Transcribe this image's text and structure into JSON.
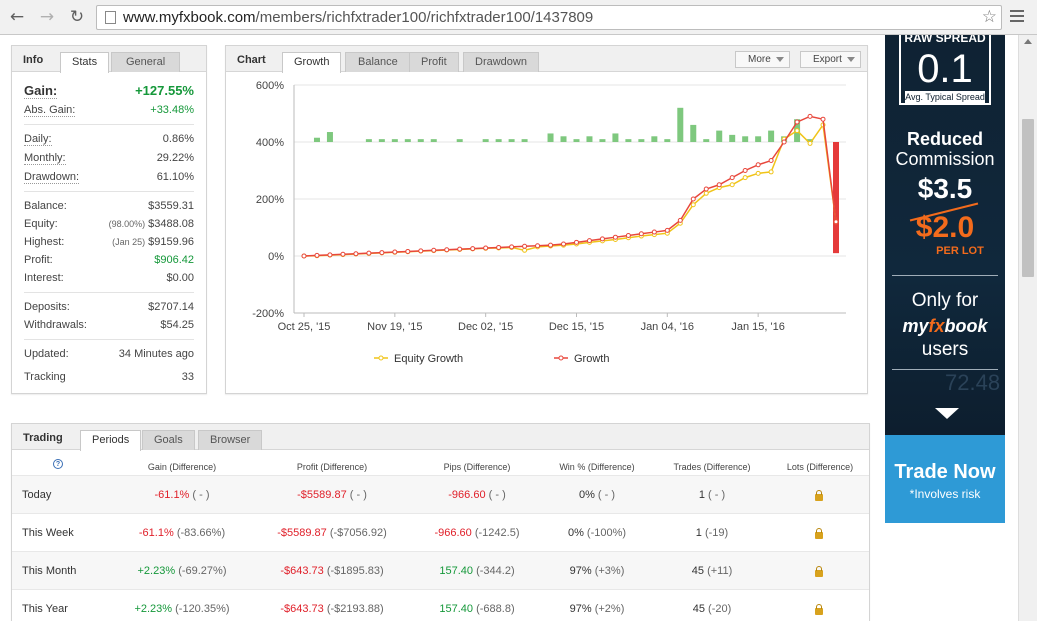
{
  "browser": {
    "back_icon": "back-arrow-icon",
    "forward_icon": "forward-arrow-icon",
    "reload_icon": "reload-icon",
    "url_host": "www.myfxbook.com",
    "url_path": "/members/richfxtrader100/richfxtrader100/1437809",
    "back_glyph": "←",
    "forward_glyph": "→",
    "reload_glyph": "↻",
    "star_glyph": "☆"
  },
  "info": {
    "title": "Info",
    "tabs": [
      "Stats",
      "General"
    ],
    "gain_label": "Gain:",
    "gain_value": "+127.55%",
    "abs_gain_label": "Abs. Gain:",
    "abs_gain_value": "+33.48%",
    "daily_label": "Daily:",
    "daily_value": "0.86%",
    "monthly_label": "Monthly:",
    "monthly_value": "29.22%",
    "drawdown_label": "Drawdown:",
    "drawdown_value": "61.10%",
    "balance_label": "Balance:",
    "balance_value": "$3559.31",
    "equity_label": "Equity:",
    "equity_sub": "(98.00%)",
    "equity_value": "$3488.08",
    "highest_label": "Highest:",
    "highest_sub": "(Jan 25)",
    "highest_value": "$9159.96",
    "profit_label": "Profit:",
    "profit_value": "$906.42",
    "interest_label": "Interest:",
    "interest_value": "$0.00",
    "deposits_label": "Deposits:",
    "deposits_value": "$2707.14",
    "withdrawals_label": "Withdrawals:",
    "withdrawals_value": "$54.25",
    "updated_label": "Updated:",
    "updated_value": "34 Minutes ago",
    "tracking_label": "Tracking",
    "tracking_value": "33"
  },
  "chart_panel": {
    "title": "Chart",
    "tabs": [
      "Growth",
      "Balance",
      "Profit",
      "Drawdown"
    ],
    "more_label": "More",
    "export_label": "Export"
  },
  "chart_data": {
    "type": "line",
    "xlabel": "",
    "ylabel": "",
    "ylim": [
      -200,
      600
    ],
    "y_ticks": [
      "600%",
      "400%",
      "200%",
      "0%",
      "-200%"
    ],
    "y_tick_values": [
      600,
      400,
      200,
      0,
      -200
    ],
    "x_ticks": [
      "Oct 25, '15",
      "Nov 19, '15",
      "Dec 02, '15",
      "Dec 15, '15",
      "Jan 04, '16",
      "Jan 15, '16"
    ],
    "x_tick_index": [
      0,
      7,
      14,
      21,
      28,
      35
    ],
    "grid": true,
    "legend_position": "bottom",
    "series": [
      {
        "name": "Equity Growth",
        "color": "#f0c419",
        "values": [
          0,
          1,
          3,
          5,
          7,
          9,
          11,
          13,
          15,
          17,
          19,
          21,
          23,
          25,
          27,
          28,
          30,
          20,
          32,
          35,
          38,
          42,
          48,
          53,
          58,
          64,
          70,
          75,
          80,
          115,
          180,
          220,
          240,
          250,
          275,
          290,
          295,
          410,
          440,
          395,
          460,
          120
        ]
      },
      {
        "name": "Growth",
        "color": "#e8473c",
        "values": [
          0,
          2,
          4,
          6,
          8,
          10,
          12,
          14,
          16,
          18,
          20,
          22,
          24,
          26,
          28,
          30,
          32,
          34,
          36,
          38,
          42,
          48,
          54,
          60,
          66,
          72,
          78,
          84,
          90,
          125,
          200,
          235,
          250,
          275,
          300,
          320,
          335,
          400,
          470,
          490,
          480,
          120
        ]
      }
    ],
    "bars": {
      "name": "Daily gain",
      "positive_color": "#7ec87e",
      "negative_color": "#e53a3a",
      "values": [
        0,
        15,
        35,
        0,
        0,
        10,
        10,
        10,
        10,
        10,
        10,
        0,
        10,
        0,
        10,
        10,
        10,
        10,
        0,
        30,
        20,
        10,
        20,
        10,
        30,
        10,
        10,
        20,
        10,
        120,
        60,
        10,
        40,
        25,
        20,
        20,
        40,
        20,
        80,
        10,
        0,
        -390
      ]
    }
  },
  "ad": {
    "raw_spread": "RAW SPREAD",
    "spread_value": "0.1",
    "spread_caption": "Avg. Typical Spread",
    "reduced": "Reduced",
    "commission": "Commission",
    "old_price": "$3.5",
    "new_price": "$2.0",
    "per_lot": "PER LOT",
    "only_for": "Only for",
    "brand_a": "my",
    "brand_b": "fx",
    "brand_c": "book",
    "users": "users",
    "trade_now": "Trade Now",
    "risk": "*Involves risk",
    "bg_number": "72.48"
  },
  "trading": {
    "title": "Trading",
    "tabs": [
      "Periods",
      "Goals",
      "Browser"
    ],
    "help_glyph": "?",
    "columns": [
      "Gain (Difference)",
      "Profit (Difference)",
      "Pips (Difference)",
      "Win % (Difference)",
      "Trades (Difference)",
      "Lots (Difference)"
    ],
    "rows": [
      {
        "period": "Today",
        "gain": "-61.1%",
        "gain_diff": "( - )",
        "profit": "-$5589.87",
        "profit_diff": "( - )",
        "pips": "-966.60",
        "pips_diff": "( - )",
        "win": "0%",
        "win_diff": "( - )",
        "trades": "1",
        "trades_diff": "( - )"
      },
      {
        "period": "This Week",
        "gain": "-61.1%",
        "gain_diff": "(-83.66%)",
        "profit": "-$5589.87",
        "profit_diff": "(-$7056.92)",
        "pips": "-966.60",
        "pips_diff": "(-1242.5)",
        "win": "0%",
        "win_diff": "(-100%)",
        "trades": "1",
        "trades_diff": "(-19)"
      },
      {
        "period": "This Month",
        "gain": "+2.23%",
        "gain_diff": "(-69.27%)",
        "profit": "-$643.73",
        "profit_diff": "(-$1895.83)",
        "pips": "157.40",
        "pips_diff": "(-344.2)",
        "win": "97%",
        "win_diff": "(+3%)",
        "trades": "45",
        "trades_diff": "(+11)"
      },
      {
        "period": "This Year",
        "gain": "+2.23%",
        "gain_diff": "(-120.35%)",
        "profit": "-$643.73",
        "profit_diff": "(-$2193.88)",
        "pips": "157.40",
        "pips_diff": "(-688.8)",
        "win": "97%",
        "win_diff": "(+2%)",
        "trades": "45",
        "trades_diff": "(-20)"
      }
    ]
  },
  "colors": {
    "positive": "#15983a",
    "negative": "#e0202a",
    "ad_accent": "#f36b1c",
    "ad_button": "#2e9ad6"
  }
}
